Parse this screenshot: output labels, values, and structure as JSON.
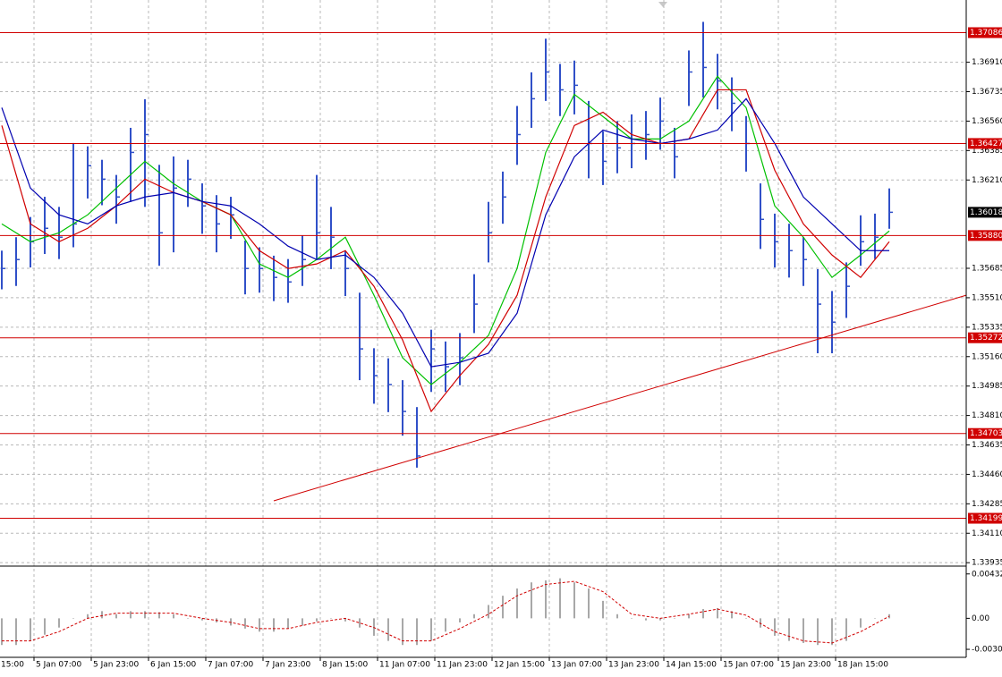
{
  "chart_data": [
    {
      "type": "ohlc",
      "color": "#3050c8",
      "x": [
        0,
        1,
        2,
        3,
        4,
        5,
        6,
        7,
        8,
        9,
        10,
        11,
        12,
        13,
        14,
        15,
        16,
        17,
        18,
        19,
        20,
        21,
        22,
        23,
        24,
        25,
        26,
        27,
        28,
        29,
        30,
        31,
        32,
        33,
        34,
        35,
        36,
        37,
        38,
        39,
        40,
        41,
        42,
        43,
        44,
        45,
        46,
        47,
        48,
        49,
        50,
        51,
        52,
        53,
        54,
        55,
        56,
        57,
        58,
        59,
        60,
        61,
        62
      ],
      "high": [
        1.3579,
        1.3587,
        1.3599,
        1.3611,
        1.3605,
        1.3643,
        1.3641,
        1.3633,
        1.3624,
        1.3652,
        1.3669,
        1.363,
        1.3635,
        1.3633,
        1.3619,
        1.3612,
        1.3611,
        1.3585,
        1.3581,
        1.3576,
        1.3574,
        1.3588,
        1.3624,
        1.3605,
        1.3579,
        1.3554,
        1.3521,
        1.3515,
        1.3502,
        1.3486,
        1.3532,
        1.3525,
        1.353,
        1.3565,
        1.3608,
        1.3626,
        1.3665,
        1.3685,
        1.3705,
        1.369,
        1.3692,
        1.3668,
        1.365,
        1.3656,
        1.366,
        1.3662,
        1.367,
        1.3652,
        1.3698,
        1.3715,
        1.3696,
        1.3682,
        1.3659,
        1.3619,
        1.3601,
        1.3595,
        1.3587,
        1.3568,
        1.3555,
        1.3572,
        1.36,
        1.3601,
        1.3616
      ],
      "low": [
        1.3556,
        1.3558,
        1.3569,
        1.3577,
        1.3574,
        1.3581,
        1.361,
        1.3606,
        1.3595,
        1.3608,
        1.3605,
        1.357,
        1.3578,
        1.3605,
        1.3589,
        1.3578,
        1.3586,
        1.3553,
        1.3554,
        1.3549,
        1.3548,
        1.3558,
        1.3574,
        1.3568,
        1.3552,
        1.3502,
        1.3488,
        1.3483,
        1.3469,
        1.345,
        1.3495,
        1.3495,
        1.3499,
        1.353,
        1.3572,
        1.3595,
        1.363,
        1.3652,
        1.3668,
        1.3659,
        1.366,
        1.3622,
        1.3618,
        1.3625,
        1.3628,
        1.3633,
        1.3639,
        1.3622,
        1.3665,
        1.367,
        1.3663,
        1.365,
        1.3626,
        1.358,
        1.3569,
        1.3563,
        1.3558,
        1.3518,
        1.3518,
        1.3539,
        1.357,
        1.3574,
        1.3592
      ],
      "close": [
        1.35684,
        1.35737,
        1.35843,
        1.35923,
        1.3587,
        1.35949,
        1.36295,
        1.36215,
        1.36109,
        1.36374,
        1.3648,
        1.35896,
        1.36162,
        1.36215,
        1.36056,
        1.35949,
        1.36003,
        1.35684,
        1.35684,
        1.35631,
        1.35604,
        1.35737,
        1.35896,
        1.3587,
        1.35684,
        1.35206,
        1.35047,
        1.34994,
        1.34834,
        1.34569,
        1.35206,
        1.351,
        1.35153,
        1.35472,
        1.35896,
        1.36109,
        1.3648,
        1.36693,
        1.36852,
        1.36746,
        1.36773,
        1.36427,
        1.36321,
        1.36401,
        1.36427,
        1.3648,
        1.3656,
        1.36348,
        1.36852,
        1.36879,
        1.36799,
        1.36666,
        1.36427,
        1.35976,
        1.35843,
        1.3579,
        1.35737,
        1.35472,
        1.35365,
        1.35578,
        1.35843,
        1.3587,
        1.36018
      ],
      "lines_x": [
        0,
        2,
        4,
        6,
        8,
        10,
        12,
        14,
        16,
        18,
        20,
        22,
        24,
        26,
        28,
        30,
        32,
        34,
        36,
        38,
        40,
        42,
        44,
        46,
        48,
        50,
        52,
        54,
        56,
        58,
        60,
        62
      ],
      "lines": [
        {
          "color": "#00c000",
          "values": [
            1.35949,
            1.35843,
            1.35896,
            1.36003,
            1.36162,
            1.36321,
            1.36188,
            1.36082,
            1.36003,
            1.35711,
            1.35631,
            1.35737,
            1.3587,
            1.35525,
            1.35153,
            1.34994,
            1.35126,
            1.35286,
            1.35684,
            1.36374,
            1.36719,
            1.36587,
            1.36454,
            1.36454,
            1.3656,
            1.36826,
            1.3664,
            1.36056,
            1.3587,
            1.35631,
            1.35764,
            1.35907
          ]
        },
        {
          "color": "#d00000",
          "values": [
            1.36534,
            1.35949,
            1.35843,
            1.35923,
            1.36056,
            1.36215,
            1.36135,
            1.36082,
            1.36003,
            1.3579,
            1.35684,
            1.35711,
            1.3579,
            1.35578,
            1.35259,
            1.34834,
            1.35047,
            1.35233,
            1.35525,
            1.36109,
            1.36534,
            1.36613,
            1.3648,
            1.36427,
            1.36454,
            1.36746,
            1.36746,
            1.36268,
            1.35949,
            1.35764,
            1.35631,
            1.35843
          ]
        },
        {
          "color": "#0000b0",
          "values": [
            1.3664,
            1.36162,
            1.36003,
            1.35949,
            1.36056,
            1.36109,
            1.36135,
            1.36082,
            1.36056,
            1.35949,
            1.35817,
            1.35737,
            1.35764,
            1.35631,
            1.35418,
            1.351,
            1.35126,
            1.3518,
            1.35418,
            1.36003,
            1.36348,
            1.36507,
            1.36454,
            1.36427,
            1.36454,
            1.36507,
            1.36693,
            1.36427,
            1.36109,
            1.35949,
            1.3579,
            1.3579
          ]
        }
      ],
      "trendline": {
        "color": "#d00000",
        "x": [
          19,
          67.375
        ],
        "y": [
          1.34303,
          1.35525
        ]
      },
      "level_color": "#d00000",
      "levels": [
        1.37086,
        1.36427,
        {
          "value": 1.3588,
          "label": "1.35880"
        },
        1.35272,
        1.34703,
        1.34199
      ],
      "current_price": 1.36018,
      "xlim": [
        -0.125,
        67.375
      ],
      "ylim": [
        1.3392,
        1.3728
      ],
      "xticks": [
        {
          "value": -1.75,
          "label": "15:00"
        },
        {
          "value": 2.25,
          "label": "5 Jan 07:00"
        },
        {
          "value": 6.25,
          "label": "5 Jan 23:00"
        },
        {
          "value": 10.25,
          "label": "6 Jan 15:00"
        },
        {
          "value": 14.25,
          "label": "7 Jan 07:00"
        },
        {
          "value": 18.25,
          "label": "7 Jan 23:00"
        },
        {
          "value": 22.25,
          "label": "8 Jan 15:00"
        },
        {
          "value": 26.25,
          "label": "11 Jan 07:00"
        },
        {
          "value": 30.25,
          "label": "11 Jan 23:00"
        },
        {
          "value": 34.25,
          "label": "12 Jan 15:00"
        },
        {
          "value": 38.25,
          "label": "13 Jan 07:00"
        },
        {
          "value": 42.25,
          "label": "13 Jan 23:00"
        },
        {
          "value": 46.25,
          "label": "14 Jan 15:00"
        },
        {
          "value": 50.25,
          "label": "15 Jan 07:00"
        },
        {
          "value": 54.25,
          "label": "15 Jan 23:00"
        },
        {
          "value": 58.25,
          "label": "18 Jan 15:00"
        }
      ],
      "yticks": [
        {
          "value": 1.3691,
          "label": "1.36910"
        },
        1.36735,
        {
          "value": 1.3656,
          "label": "1.36560"
        },
        1.36385,
        {
          "value": 1.3621,
          "label": "1.36210"
        },
        1.35685,
        {
          "value": 1.3551,
          "label": "1.35510"
        },
        1.35335,
        {
          "value": 1.3516,
          "label": "1.35160"
        },
        1.34985,
        {
          "value": 1.3481,
          "label": "1.34810"
        },
        1.34635,
        {
          "value": 1.3446,
          "label": "1.34460"
        },
        1.34285,
        {
          "value": 1.3411,
          "label": "1.34110"
        },
        1.33935
      ],
      "grid": true
    },
    {
      "type": "macd",
      "color": "#a8a8a8",
      "x": [
        0,
        1,
        2,
        3,
        4,
        5,
        6,
        7,
        8,
        9,
        10,
        11,
        12,
        13,
        14,
        15,
        16,
        17,
        18,
        19,
        20,
        21,
        22,
        23,
        24,
        25,
        26,
        27,
        28,
        29,
        30,
        31,
        32,
        33,
        34,
        35,
        36,
        37,
        38,
        39,
        40,
        41,
        42,
        43,
        44,
        45,
        46,
        47,
        48,
        49,
        50,
        51,
        52,
        53,
        54,
        55,
        56,
        57,
        58,
        59,
        60,
        61,
        62
      ],
      "values": [
        -0.0026,
        -0.0026,
        -0.0022,
        -0.0016,
        -0.0009,
        0,
        0.0004,
        0.0007,
        0.0004,
        0.0007,
        0.0007,
        0.0006,
        0.0004,
        0,
        -0.0002,
        -0.0004,
        -0.0007,
        -0.001,
        -0.0013,
        -0.0013,
        -0.001,
        -0.0007,
        -0.0003,
        0,
        -0.0003,
        -0.0009,
        -0.0017,
        -0.0022,
        -0.0026,
        -0.0026,
        -0.0022,
        -0.0013,
        -0.0004,
        0.0004,
        0.0013,
        0.0022,
        0.0029,
        0.0035,
        0.0037,
        0.0039,
        0.0035,
        0.0029,
        0.0017,
        0.0004,
        0,
        -0.0002,
        -0.0002,
        0,
        0.0004,
        0.0009,
        0.001,
        0.0007,
        0,
        -0.0009,
        -0.0017,
        -0.0022,
        -0.0024,
        -0.0026,
        -0.0026,
        -0.0022,
        -0.0009,
        0,
        0.0004
      ],
      "signal_color": "#d00000",
      "signal_x": [
        0,
        2,
        4,
        6,
        8,
        10,
        12,
        14,
        16,
        18,
        20,
        22,
        24,
        26,
        28,
        30,
        32,
        34,
        36,
        38,
        40,
        42,
        44,
        46,
        48,
        50,
        52,
        54,
        56,
        58,
        60,
        62
      ],
      "signal": [
        -0.0022,
        -0.0022,
        -0.0013,
        0,
        0.0005,
        0.0005,
        0.0005,
        0,
        -0.0004,
        -0.001,
        -0.001,
        -0.0004,
        0,
        -0.0009,
        -0.0022,
        -0.0022,
        -0.001,
        0.0004,
        0.0022,
        0.0033,
        0.0036,
        0.0026,
        0.0004,
        0,
        0.0004,
        0.0009,
        0.0003,
        -0.0013,
        -0.0022,
        -0.0024,
        -0.0013,
        0.0002
      ],
      "xlim": [
        -0.125,
        67.375
      ],
      "ylim": [
        -0.0038,
        0.005
      ],
      "yticks": [
        0.004324,
        {
          "value": 0,
          "label": "0.00"
        },
        -0.00302
      ]
    }
  ]
}
